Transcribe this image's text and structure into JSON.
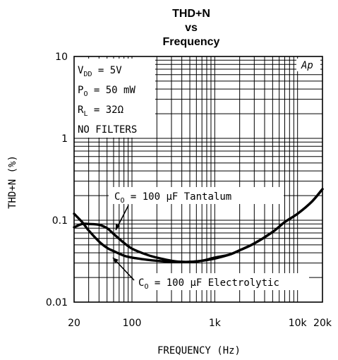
{
  "chart_data": {
    "type": "line",
    "title": [
      "THD+N",
      "vs",
      "Frequency"
    ],
    "xlabel": "FREQUENCY (Hz)",
    "ylabel": "THD+N (%)",
    "x_scale": "log",
    "y_scale": "log",
    "xlim": [
      20,
      20000
    ],
    "ylim": [
      0.01,
      10
    ],
    "grid": true,
    "x_tick_labels": [
      {
        "value": 20,
        "label": "20"
      },
      {
        "value": 100,
        "label": "100"
      },
      {
        "value": 1000,
        "label": "1k"
      },
      {
        "value": 10000,
        "label": "10k"
      },
      {
        "value": 20000,
        "label": "20k"
      }
    ],
    "y_tick_labels": [
      {
        "value": 10,
        "label": "10"
      },
      {
        "value": 1,
        "label": "1"
      },
      {
        "value": 0.1,
        "label": "0.1"
      },
      {
        "value": 0.01,
        "label": "0.01"
      }
    ],
    "conditions": {
      "vdd_main": "V",
      "vdd_sub": "DD",
      "vdd_val": " = 5V",
      "po_main": "P",
      "po_sub": "O",
      "po_val": " = 50 mW",
      "rl_main": "R",
      "rl_sub": "L",
      "rl_val": " = 32Ω",
      "filters": "NO FILTERS"
    },
    "watermark": "Ap",
    "annotations": [
      {
        "main": "C",
        "sub": "O",
        "text": " = 100 μF Tantalum"
      },
      {
        "main": "C",
        "sub": "O",
        "text": " = 100 μF Electrolytic"
      }
    ],
    "series": [
      {
        "x": [
          20,
          25,
          30,
          40,
          50,
          60,
          80,
          100,
          150,
          200,
          300,
          400,
          500,
          700,
          1000,
          1500,
          2000,
          3000,
          5000,
          7000,
          10000,
          15000,
          20000
        ],
        "y": [
          0.082,
          0.09,
          0.09,
          0.088,
          0.08,
          0.068,
          0.053,
          0.045,
          0.038,
          0.035,
          0.032,
          0.031,
          0.031,
          0.032,
          0.035,
          0.038,
          0.043,
          0.052,
          0.072,
          0.095,
          0.12,
          0.17,
          0.24
        ]
      },
      {
        "x": [
          20,
          25,
          30,
          40,
          50,
          60,
          80,
          100,
          150,
          200,
          300,
          400,
          500,
          700,
          1000,
          1500,
          2000,
          3000,
          5000,
          7000,
          10000,
          15000,
          20000
        ],
        "y": [
          0.12,
          0.095,
          0.075,
          0.055,
          0.046,
          0.042,
          0.037,
          0.035,
          0.033,
          0.032,
          0.031,
          0.031,
          0.031,
          0.032,
          0.034,
          0.038,
          0.043,
          0.052,
          0.072,
          0.095,
          0.12,
          0.17,
          0.24
        ]
      }
    ]
  }
}
